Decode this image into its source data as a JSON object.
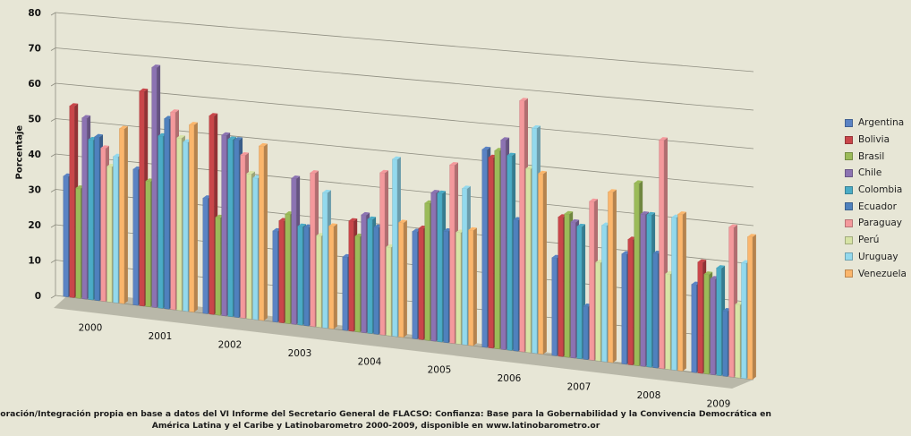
{
  "chart_data": {
    "type": "bar",
    "title": "",
    "xlabel": "",
    "ylabel": "Porcentaje",
    "ylim": [
      0,
      80
    ],
    "yticks": [
      0,
      10,
      20,
      30,
      40,
      50,
      60,
      70,
      80
    ],
    "categories": [
      "2000",
      "2001",
      "2002",
      "2003",
      "2004",
      "2005",
      "2006",
      "2007",
      "2008",
      "2009"
    ],
    "grid": true,
    "legend_position": "right",
    "series": [
      {
        "name": "Argentina",
        "color": "#5a83c4",
        "values": [
          34,
          38,
          32,
          25,
          20,
          29,
          53,
          26,
          29,
          23
        ]
      },
      {
        "name": "Bolivia",
        "color": "#c9464a",
        "values": [
          54,
          60,
          55,
          28,
          30,
          30,
          51,
          37,
          33,
          29
        ]
      },
      {
        "name": "Brasil",
        "color": "#9bbb59",
        "values": [
          31,
          35,
          27,
          30,
          26,
          37,
          53,
          38,
          48,
          26
        ]
      },
      {
        "name": "Chile",
        "color": "#8c73b2",
        "values": [
          51,
          67,
          50,
          40,
          32,
          40,
          56,
          36,
          40,
          25
        ]
      },
      {
        "name": "Colombia",
        "color": "#4bacc6",
        "values": [
          45,
          48,
          49,
          27,
          31,
          40,
          52,
          35,
          40,
          28
        ]
      },
      {
        "name": "Ecuador",
        "color": "#4f81bd",
        "values": [
          46,
          53,
          49,
          27,
          29,
          30,
          35,
          14,
          30,
          17
        ]
      },
      {
        "name": "Paraguay",
        "color": "#f4999c",
        "values": [
          43,
          55,
          45,
          42,
          44,
          48,
          67,
          42,
          60,
          39
        ]
      },
      {
        "name": "Perú",
        "color": "#d7e4a6",
        "values": [
          38,
          48,
          40,
          25,
          24,
          30,
          49,
          26,
          25,
          19
        ]
      },
      {
        "name": "Uruguay",
        "color": "#93d9ed",
        "values": [
          41,
          47,
          39,
          37,
          48,
          42,
          60,
          36,
          40,
          30
        ]
      },
      {
        "name": "Venezuela",
        "color": "#fbb66c",
        "values": [
          49,
          52,
          48,
          28,
          31,
          31,
          48,
          45,
          41,
          37
        ]
      }
    ]
  },
  "source": {
    "line1": "Elaboración/Integración propia en base a datos del VI Informe del Secretario General de FLACSO: Confianza: Base para la Gobernabilidad y la Convivencia Democrática en",
    "line2": "América Latina y el Caribe y Latinobarometro 2000-2009, disponible en www.latinobarometro.or"
  }
}
